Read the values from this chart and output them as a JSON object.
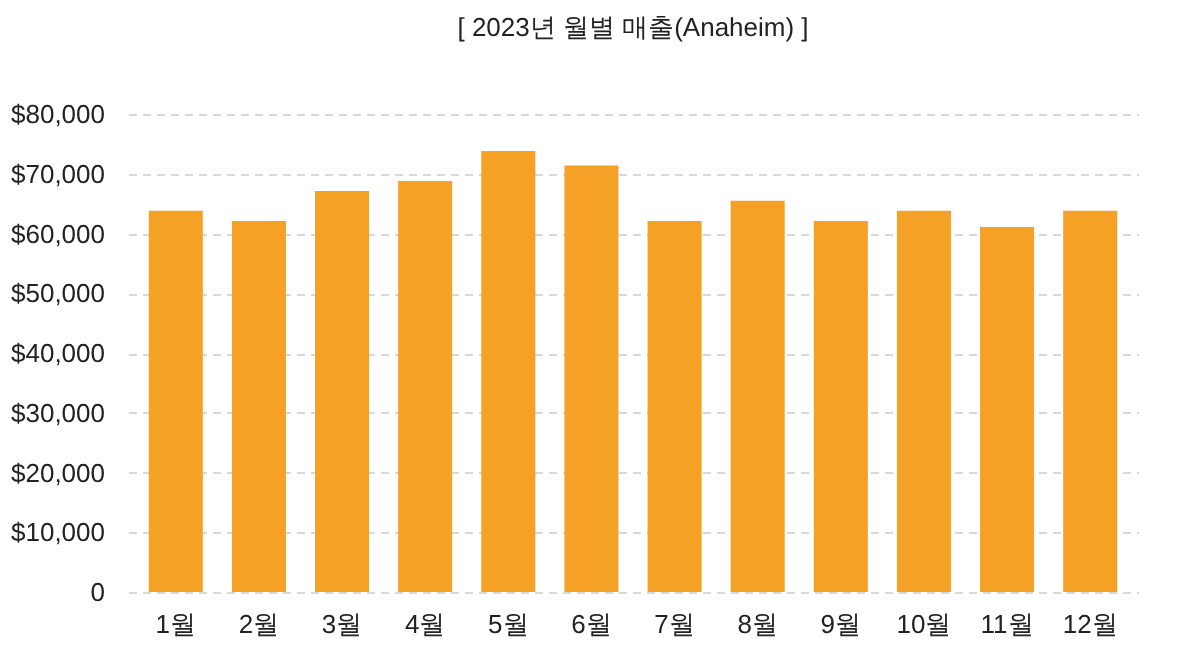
{
  "chart_data": {
    "type": "bar",
    "title": "[ 2023년 월별 매출(Anaheim) ]",
    "categories": [
      "1월",
      "2월",
      "3월",
      "4월",
      "5월",
      "6월",
      "7월",
      "8월",
      "9월",
      "10월",
      "11월",
      "12월"
    ],
    "values": [
      63800,
      62100,
      67100,
      68800,
      73800,
      71400,
      62100,
      65500,
      62100,
      63800,
      61100,
      63800
    ],
    "color": "#f5a126",
    "ylim": [
      0,
      80000
    ],
    "yticks": [
      {
        "value": 0,
        "label": "0"
      },
      {
        "value": 10000,
        "label": "$10,000"
      },
      {
        "value": 20000,
        "label": "$20,000"
      },
      {
        "value": 30000,
        "label": "$30,000"
      },
      {
        "value": 40000,
        "label": "$40,000"
      },
      {
        "value": 50000,
        "label": "$50,000"
      },
      {
        "value": 60000,
        "label": "$60,000"
      },
      {
        "value": 70000,
        "label": "$70,000"
      },
      {
        "value": 80000,
        "label": "$80,000"
      }
    ],
    "grid": "y"
  }
}
